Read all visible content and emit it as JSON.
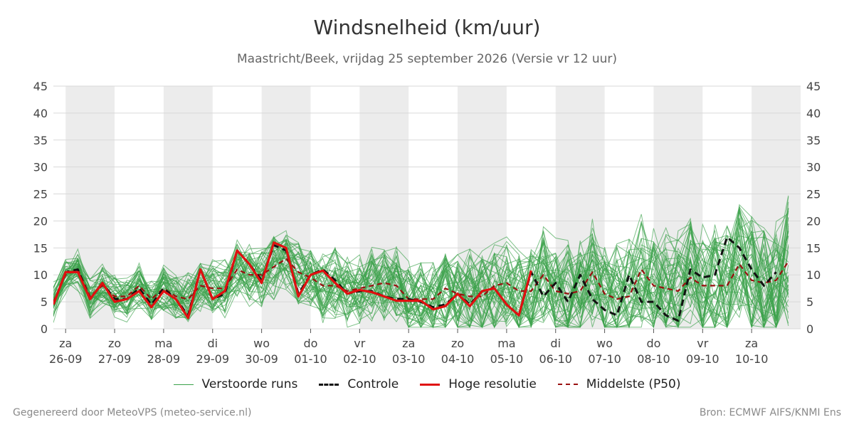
{
  "title": "Windsnelheid (km/uur)",
  "subtitle": "Maastricht/Beek, vrijdag 25 september 2026 (Versie vr 12 uur)",
  "footer": {
    "left": "Gegenereerd door MeteoVPS (meteo-service.nl)",
    "right": "Bron: ECMWF AIFS/KNMI Ens"
  },
  "legend": {
    "ensemble": "Verstoorde runs",
    "control": "Controle",
    "hires": "Hoge resolutie",
    "median": "Middelste (P50)"
  },
  "colors": {
    "ensemble": "#3aa24a",
    "control": "#111111",
    "hires": "#e01010",
    "median": "#9a1010",
    "weekend_band": "#ececec",
    "grid": "#d9d9d9"
  },
  "chart_data": {
    "type": "line",
    "ylim": [
      0,
      45
    ],
    "yticks": [
      0,
      5,
      10,
      15,
      20,
      25,
      30,
      35,
      40,
      45
    ],
    "xlim": [
      0,
      15.25
    ],
    "x_step": 0.25,
    "day_labels": [
      {
        "x": 0.25,
        "day": "za",
        "date": "26-09"
      },
      {
        "x": 1.25,
        "day": "zo",
        "date": "27-09"
      },
      {
        "x": 2.25,
        "day": "ma",
        "date": "28-09"
      },
      {
        "x": 3.25,
        "day": "di",
        "date": "29-09"
      },
      {
        "x": 4.25,
        "day": "wo",
        "date": "30-09"
      },
      {
        "x": 5.25,
        "day": "do",
        "date": "01-10"
      },
      {
        "x": 6.25,
        "day": "vr",
        "date": "02-10"
      },
      {
        "x": 7.25,
        "day": "za",
        "date": "03-10"
      },
      {
        "x": 8.25,
        "day": "zo",
        "date": "04-10"
      },
      {
        "x": 9.25,
        "day": "ma",
        "date": "05-10"
      },
      {
        "x": 10.25,
        "day": "di",
        "date": "06-10"
      },
      {
        "x": 11.25,
        "day": "wo",
        "date": "07-10"
      },
      {
        "x": 12.25,
        "day": "do",
        "date": "08-10"
      },
      {
        "x": 13.25,
        "day": "vr",
        "date": "09-10"
      },
      {
        "x": 14.25,
        "day": "za",
        "date": "10-10"
      }
    ],
    "shaded_days": [
      [
        0.25,
        1.25
      ],
      [
        2.25,
        3.25
      ],
      [
        4.25,
        5.25
      ],
      [
        6.25,
        7.25
      ],
      [
        8.25,
        9.25
      ],
      [
        10.25,
        11.25
      ],
      [
        12.25,
        13.25
      ],
      [
        14.25,
        15.25
      ]
    ],
    "series": [
      {
        "name": "Controle",
        "style": "dashed",
        "x_start": 0.0,
        "values": [
          4.5,
          10.5,
          11,
          5.5,
          8.5,
          5.5,
          5.5,
          7.5,
          4.5,
          7.5,
          5.5,
          2.5,
          11,
          5.5,
          6.5,
          14.5,
          12,
          9,
          15.5,
          14.5,
          6.5,
          10,
          11,
          9,
          6.5,
          7,
          7,
          6,
          5.5,
          5.5,
          5,
          4,
          4.5,
          6.5,
          4.5,
          7,
          7.5,
          4.5,
          2.5,
          10.5,
          6,
          8.5,
          5,
          10,
          5.5,
          3.5,
          2.5,
          10,
          5,
          5,
          2.5,
          1.5,
          11,
          9.5,
          10,
          17,
          15,
          11,
          8,
          10.5
        ]
      },
      {
        "name": "Hoge resolutie",
        "style": "solid",
        "x_start": 0.0,
        "x_end": 10.0,
        "values": [
          4.5,
          10.5,
          10.5,
          5.5,
          8.5,
          5,
          5.5,
          7,
          4,
          7,
          5.5,
          2,
          11,
          5.5,
          7,
          14.5,
          12,
          8.5,
          16,
          15,
          6,
          10,
          10.8,
          8.5,
          6.5,
          7.2,
          6.8,
          6,
          5.2,
          5.2,
          5.2,
          3.6,
          4.2,
          6.5,
          4.2,
          7,
          7.5,
          4.5,
          2.5,
          10.8
        ]
      },
      {
        "name": "Middelste (P50)",
        "style": "dashed",
        "x_start": 0.0,
        "values": [
          5,
          10,
          11,
          6,
          8,
          6,
          6,
          8,
          5.5,
          7.5,
          6,
          5.5,
          8,
          7.5,
          7.5,
          11,
          10,
          10,
          11.5,
          13,
          10.5,
          9.5,
          8,
          8,
          7,
          7.5,
          8,
          8.5,
          8,
          5.5,
          5.5,
          5.5,
          7.5,
          6.5,
          6,
          6,
          8,
          8.5,
          7,
          7,
          10,
          7,
          6.5,
          7,
          10.5,
          6.5,
          5.5,
          6,
          11,
          8,
          7.5,
          7,
          9.5,
          8,
          8,
          8,
          12,
          9,
          8.5,
          9,
          12.5
        ]
      }
    ]
  }
}
